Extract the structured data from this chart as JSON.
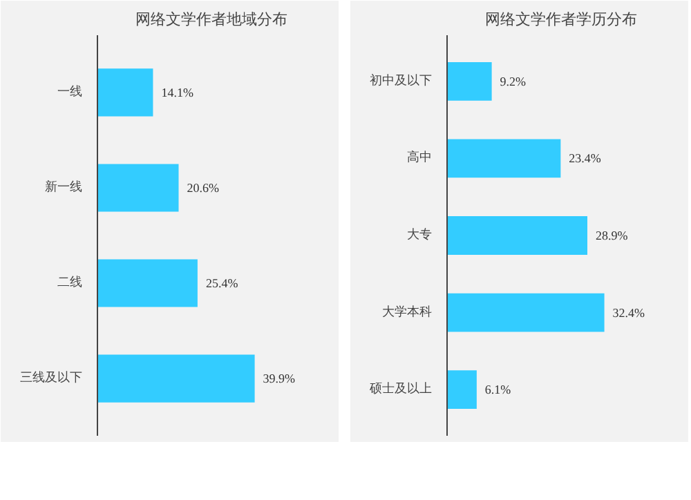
{
  "chart_data": [
    {
      "type": "bar",
      "orientation": "horizontal",
      "title": "网络文学作者地域分布",
      "categories": [
        "一线",
        "新一线",
        "二线",
        "三线及以下"
      ],
      "values": [
        14.1,
        20.6,
        25.4,
        39.9
      ],
      "color": "#33ccff",
      "data_labels": true,
      "value_labels": [
        "14.1%",
        "20.6%",
        "25.4%",
        "39.9%"
      ]
    },
    {
      "type": "bar",
      "orientation": "horizontal",
      "title": "网络文学作者学历分布",
      "categories": [
        "初中及以下",
        "高中",
        "大专",
        "大学本科",
        "硕士及以上"
      ],
      "values": [
        9.2,
        23.4,
        28.9,
        32.4,
        6.1
      ],
      "color": "#33ccff",
      "data_labels": true,
      "value_labels": [
        "9.2%",
        "23.4%",
        "28.9%",
        "32.4%",
        "6.1%"
      ]
    }
  ]
}
